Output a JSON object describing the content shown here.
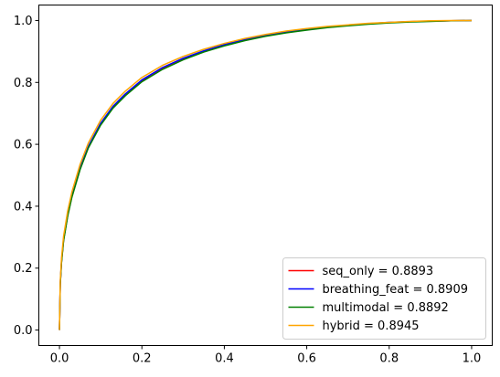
{
  "chart_data": {
    "type": "line",
    "title": "",
    "xlabel": "",
    "ylabel": "",
    "xlim": [
      -0.05,
      1.05
    ],
    "ylim": [
      -0.05,
      1.05
    ],
    "xticks": [
      0.0,
      0.2,
      0.4,
      0.6,
      0.8,
      1.0
    ],
    "yticks": [
      0.0,
      0.2,
      0.4,
      0.6,
      0.8,
      1.0
    ],
    "xtick_labels": [
      "0.0",
      "0.2",
      "0.4",
      "0.6",
      "0.8",
      "1.0"
    ],
    "ytick_labels": [
      "0.0",
      "0.2",
      "0.4",
      "0.6",
      "0.8",
      "1.0"
    ],
    "grid": false,
    "legend_position": "lower-right",
    "series": [
      {
        "label": "seq_only = 0.8893",
        "color": "#ff0000",
        "x": [
          0,
          0.002,
          0.005,
          0.01,
          0.02,
          0.03,
          0.05,
          0.07,
          0.1,
          0.13,
          0.16,
          0.2,
          0.25,
          0.3,
          0.35,
          0.4,
          0.45,
          0.5,
          0.55,
          0.6,
          0.65,
          0.7,
          0.75,
          0.8,
          0.85,
          0.9,
          0.95,
          1.0
        ],
        "y": [
          0,
          0.15,
          0.22,
          0.29,
          0.37,
          0.43,
          0.52,
          0.59,
          0.665,
          0.72,
          0.76,
          0.805,
          0.845,
          0.875,
          0.9,
          0.92,
          0.937,
          0.951,
          0.962,
          0.971,
          0.978,
          0.984,
          0.989,
          0.993,
          0.996,
          0.998,
          0.999,
          1.0
        ]
      },
      {
        "label": "breathing_feat = 0.8909",
        "color": "#0000ff",
        "x": [
          0,
          0.002,
          0.005,
          0.01,
          0.02,
          0.03,
          0.05,
          0.07,
          0.1,
          0.13,
          0.16,
          0.2,
          0.25,
          0.3,
          0.35,
          0.4,
          0.45,
          0.5,
          0.55,
          0.6,
          0.65,
          0.7,
          0.75,
          0.8,
          0.85,
          0.9,
          0.95,
          1.0
        ],
        "y": [
          0,
          0.152,
          0.223,
          0.293,
          0.373,
          0.433,
          0.523,
          0.593,
          0.668,
          0.723,
          0.763,
          0.808,
          0.848,
          0.878,
          0.902,
          0.922,
          0.939,
          0.953,
          0.964,
          0.972,
          0.979,
          0.985,
          0.99,
          0.994,
          0.996,
          0.998,
          0.999,
          1.0
        ]
      },
      {
        "label": "multimodal = 0.8892",
        "color": "#008000",
        "x": [
          0,
          0.002,
          0.005,
          0.01,
          0.02,
          0.03,
          0.05,
          0.07,
          0.1,
          0.13,
          0.16,
          0.2,
          0.25,
          0.3,
          0.35,
          0.4,
          0.45,
          0.5,
          0.55,
          0.6,
          0.65,
          0.7,
          0.75,
          0.8,
          0.85,
          0.9,
          0.95,
          1.0
        ],
        "y": [
          0,
          0.148,
          0.218,
          0.288,
          0.368,
          0.428,
          0.518,
          0.588,
          0.662,
          0.717,
          0.757,
          0.802,
          0.842,
          0.873,
          0.898,
          0.918,
          0.935,
          0.949,
          0.96,
          0.969,
          0.977,
          0.983,
          0.988,
          0.992,
          0.995,
          0.997,
          0.999,
          1.0
        ]
      },
      {
        "label": "hybrid = 0.8945",
        "color": "#ffa500",
        "x": [
          0,
          0.002,
          0.005,
          0.01,
          0.02,
          0.03,
          0.05,
          0.07,
          0.1,
          0.13,
          0.16,
          0.2,
          0.25,
          0.3,
          0.35,
          0.4,
          0.45,
          0.5,
          0.55,
          0.6,
          0.65,
          0.7,
          0.75,
          0.8,
          0.85,
          0.9,
          0.95,
          1.0
        ],
        "y": [
          0,
          0.16,
          0.232,
          0.303,
          0.385,
          0.445,
          0.535,
          0.604,
          0.678,
          0.732,
          0.772,
          0.816,
          0.855,
          0.884,
          0.907,
          0.926,
          0.942,
          0.955,
          0.966,
          0.974,
          0.981,
          0.986,
          0.991,
          0.994,
          0.997,
          0.999,
          1.0,
          1.0
        ]
      }
    ]
  }
}
